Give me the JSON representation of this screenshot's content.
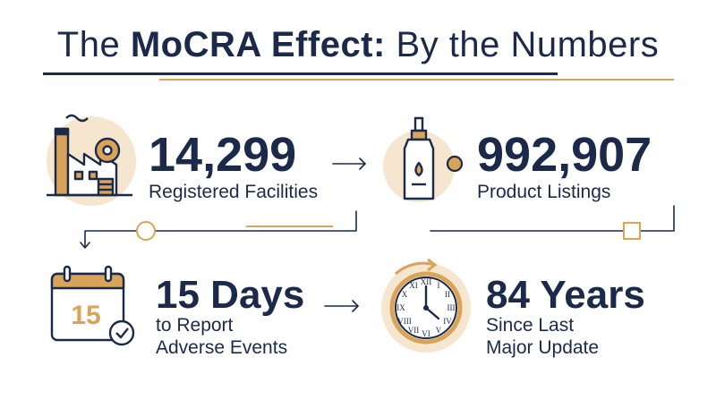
{
  "title": {
    "prefix": "The",
    "bold": "MoCRA Effect:",
    "suffix": "By the Numbers"
  },
  "stats": [
    {
      "value": "14,299",
      "label": "Registered Facilities",
      "icon": "factory-icon"
    },
    {
      "value": "992,907",
      "label": "Product Listings",
      "icon": "dropper-bottle-icon"
    },
    {
      "value": "15 Days",
      "label_line1": "to Report",
      "label_line2": "Adverse Events",
      "icon": "calendar-icon",
      "icon_text": "15"
    },
    {
      "value": "84 Years",
      "label_line1": "Since Last",
      "label_line2": "Major Update",
      "icon": "clock-icon"
    }
  ],
  "colors": {
    "navy": "#1b2a4a",
    "gold": "#d9a35a",
    "cream": "#f7e6cf"
  }
}
